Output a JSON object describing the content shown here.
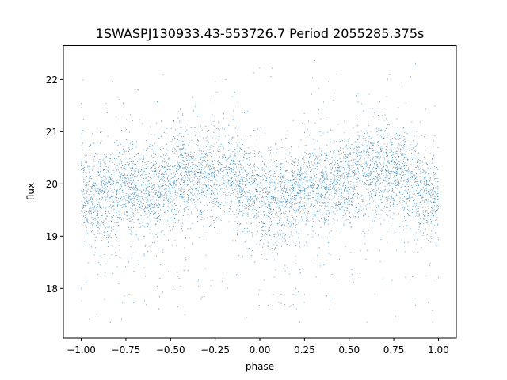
{
  "chart_data": {
    "type": "scatter",
    "title": "1SWASPJ130933.43-553726.7 Period 2055285.375s",
    "xlabel": "phase",
    "ylabel": "flux",
    "xlim": [
      -1.1,
      1.1
    ],
    "ylim": [
      17.05,
      22.65
    ],
    "xticks": [
      -1.0,
      -0.75,
      -0.5,
      -0.25,
      0.0,
      0.25,
      0.5,
      0.75,
      1.0
    ],
    "xtick_labels": [
      "−1.00",
      "−0.75",
      "−0.50",
      "−0.25",
      "0.00",
      "0.25",
      "0.50",
      "0.75",
      "1.00"
    ],
    "yticks": [
      18,
      19,
      20,
      21,
      22
    ],
    "ytick_labels": [
      "18",
      "19",
      "20",
      "21",
      "22"
    ],
    "grid": false,
    "legend": "none",
    "marker_color": "#1f77b4",
    "series": [
      {
        "x_range": [
          -1.0,
          1.0
        ],
        "mean_flux_profile": [
          [
            -1.0,
            19.75
          ],
          [
            -0.9,
            19.7
          ],
          [
            -0.8,
            19.85
          ],
          [
            -0.7,
            19.95
          ],
          [
            -0.6,
            19.9
          ],
          [
            -0.5,
            20.05
          ],
          [
            -0.4,
            20.15
          ],
          [
            -0.3,
            20.2
          ],
          [
            -0.2,
            20.25
          ],
          [
            -0.1,
            19.95
          ],
          [
            0.0,
            19.75
          ],
          [
            0.1,
            19.7
          ],
          [
            0.2,
            19.8
          ],
          [
            0.3,
            19.95
          ],
          [
            0.4,
            19.95
          ],
          [
            0.5,
            20.1
          ],
          [
            0.6,
            20.25
          ],
          [
            0.7,
            20.25
          ],
          [
            0.8,
            20.2
          ],
          [
            0.9,
            19.85
          ],
          [
            1.0,
            19.75
          ]
        ],
        "scatter_sigma": 0.45,
        "flux_min": 17.3,
        "flux_max": 22.4
      }
    ]
  }
}
